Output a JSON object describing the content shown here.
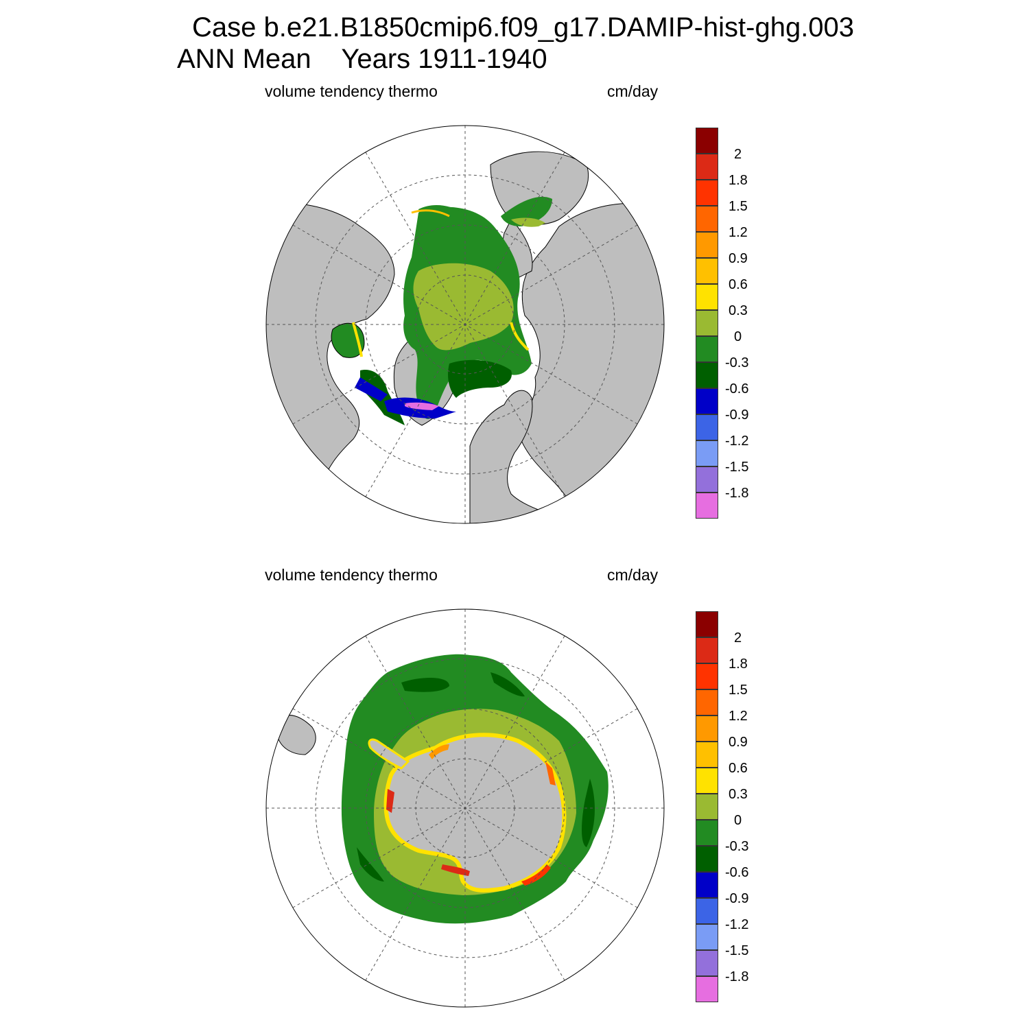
{
  "title": {
    "line1": "Case b.e21.B1850cmip6.f09_g17.DAMIP-hist-ghg.003",
    "line2": "ANN Mean    Years 1911-1940"
  },
  "panels": [
    {
      "id": "north",
      "hemisphere": "Northern Hemisphere polar stereographic",
      "left_label": "volume tendency thermo",
      "right_label": "cm/day"
    },
    {
      "id": "south",
      "hemisphere": "Southern Hemisphere polar stereographic",
      "left_label": "volume tendency thermo",
      "right_label": "cm/day"
    }
  ],
  "colorbar": {
    "labels": [
      "2",
      "1.8",
      "1.5",
      "1.2",
      "0.9",
      "0.6",
      "0.3",
      "0",
      "-0.3",
      "-0.6",
      "-0.9",
      "-1.2",
      "-1.5",
      "-1.8"
    ],
    "colors": [
      "#8b0000",
      "#dc2a16",
      "#ff3300",
      "#ff6600",
      "#ff9900",
      "#ffc000",
      "#ffe200",
      "#9aba32",
      "#228b22",
      "#005f00",
      "#0000c8",
      "#3c64e6",
      "#7a9cf5",
      "#9370db",
      "#e66ee0"
    ]
  },
  "colors": {
    "land": "#bebebe",
    "ocean_unfilled": "#ffffff",
    "grid": "#555555"
  }
}
